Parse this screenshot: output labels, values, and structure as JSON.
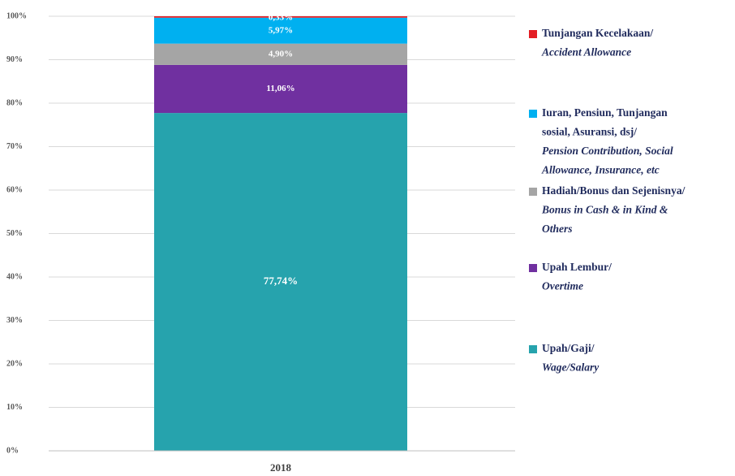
{
  "chart_data": {
    "type": "stacked_bar",
    "categories": [
      "2018"
    ],
    "ylim": [
      0,
      100
    ],
    "yticks": [
      {
        "value": 0,
        "label": "0%"
      },
      {
        "value": 10,
        "label": "10%"
      },
      {
        "value": 20,
        "label": "20%"
      },
      {
        "value": 30,
        "label": "30%"
      },
      {
        "value": 40,
        "label": "40%"
      },
      {
        "value": 50,
        "label": "50%"
      },
      {
        "value": 60,
        "label": "60%"
      },
      {
        "value": 70,
        "label": "70%"
      },
      {
        "value": 80,
        "label": "80%"
      },
      {
        "value": 90,
        "label": "90%"
      },
      {
        "value": 100,
        "label": "100%"
      }
    ],
    "grid": true,
    "legend": "right",
    "series": [
      {
        "name": {
          "id": [
            "Upah/Gaji/"
          ],
          "en": [
            "Wage/Salary"
          ]
        },
        "color": "#26a3ad",
        "values": [
          77.74
        ],
        "value_labels": [
          "77,74%"
        ]
      },
      {
        "name": {
          "id": [
            "Upah Lembur/"
          ],
          "en": [
            "Overtime"
          ]
        },
        "color": "#7030a0",
        "values": [
          11.06
        ],
        "value_labels": [
          "11,06%"
        ]
      },
      {
        "name": {
          "id": [
            "Hadiah/Bonus dan Sejenisnya/"
          ],
          "en": [
            "Bonus in Cash & in Kind &",
            "Others"
          ]
        },
        "color": "#a5a5a5",
        "values": [
          4.9
        ],
        "value_labels": [
          "4,90%"
        ]
      },
      {
        "name": {
          "id": [
            "Iuran, Pensiun, Tunjangan",
            "sosial, Asuransi, dsj/"
          ],
          "en": [
            "Pension Contribution, Social",
            "Allowance, Insurance, etc"
          ]
        },
        "color": "#00b0f0",
        "values": [
          5.97
        ],
        "value_labels": [
          "5,97%"
        ]
      },
      {
        "name": {
          "id": [
            "Tunjangan Kecelakaan/"
          ],
          "en": [
            "Accident Allowance"
          ]
        },
        "color": "#e31e24",
        "values": [
          0.33
        ],
        "value_labels": [
          "0,33%"
        ]
      }
    ]
  }
}
